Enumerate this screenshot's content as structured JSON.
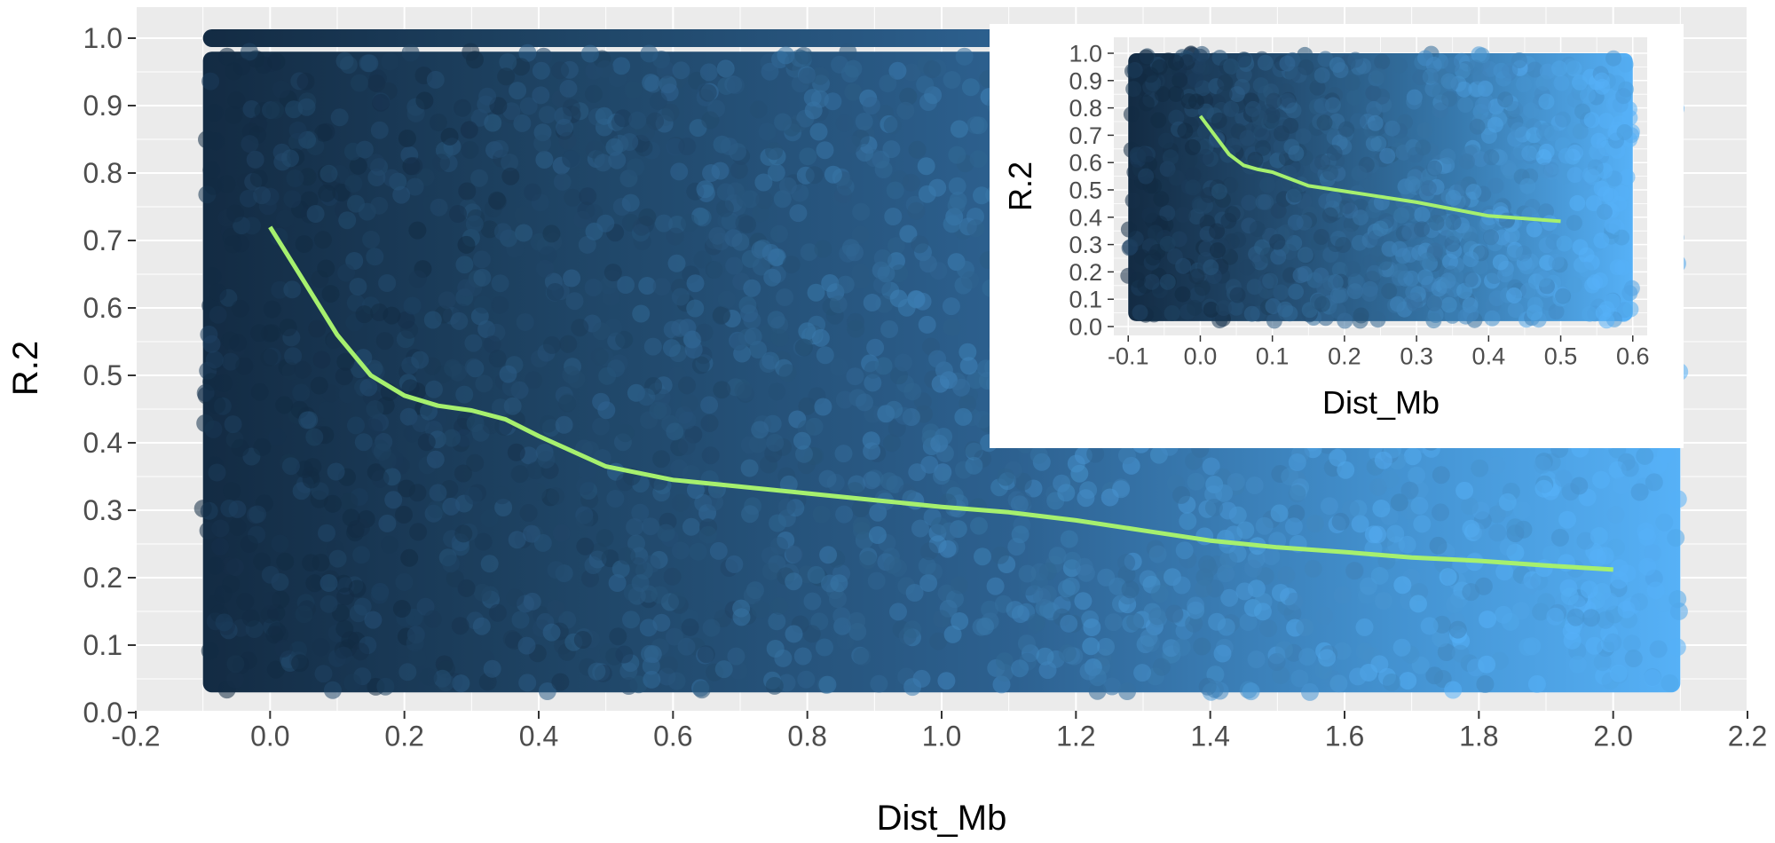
{
  "chart_data": [
    {
      "type": "scatter",
      "title": "",
      "xlabel": "Dist_Mb",
      "ylabel": "R.2",
      "xlim": [
        -0.2,
        2.2
      ],
      "ylim": [
        0.0,
        1.0
      ],
      "xticks": [
        -0.2,
        0.0,
        0.2,
        0.4,
        0.6,
        0.8,
        1.0,
        1.2,
        1.4,
        1.6,
        1.8,
        2.0,
        2.2
      ],
      "xtick_labels": [
        "-0.2",
        "0.0",
        "0.2",
        "0.4",
        "0.6",
        "0.8",
        "1.0",
        "1.2",
        "1.4",
        "1.6",
        "1.8",
        "2.0",
        "2.2"
      ],
      "yticks": [
        0.0,
        0.1,
        0.2,
        0.3,
        0.4,
        0.5,
        0.6,
        0.7,
        0.8,
        0.9,
        1.0
      ],
      "ytick_labels": [
        "0.0",
        "0.1",
        "0.2",
        "0.3",
        "0.4",
        "0.5",
        "0.6",
        "0.7",
        "0.8",
        "0.9",
        "1.0"
      ],
      "grid": true,
      "point_cloud": {
        "x_range": [
          -0.1,
          2.1
        ],
        "y_range": [
          0.03,
          0.98
        ],
        "top_band_y": 1.0,
        "color_low": "#132b43",
        "color_high": "#56b1f7"
      },
      "series": [
        {
          "type": "line",
          "color": "#a6f06e",
          "x": [
            0.0,
            0.05,
            0.1,
            0.15,
            0.2,
            0.25,
            0.3,
            0.35,
            0.4,
            0.5,
            0.6,
            0.7,
            0.8,
            0.9,
            1.0,
            1.1,
            1.2,
            1.3,
            1.4,
            1.5,
            1.6,
            1.7,
            1.8,
            1.9,
            2.0
          ],
          "y": [
            0.72,
            0.64,
            0.56,
            0.5,
            0.47,
            0.455,
            0.448,
            0.435,
            0.41,
            0.365,
            0.345,
            0.335,
            0.325,
            0.315,
            0.305,
            0.297,
            0.285,
            0.27,
            0.255,
            0.245,
            0.238,
            0.23,
            0.225,
            0.218,
            0.212
          ]
        }
      ]
    },
    {
      "type": "scatter",
      "title": "",
      "xlabel": "Dist_Mb",
      "ylabel": "R.2",
      "xlim": [
        -0.12,
        0.62
      ],
      "ylim": [
        0.0,
        1.0
      ],
      "xticks": [
        -0.1,
        0.0,
        0.1,
        0.2,
        0.3,
        0.4,
        0.5,
        0.6
      ],
      "xtick_labels": [
        "-0.1",
        "0.0",
        "0.1",
        "0.2",
        "0.3",
        "0.4",
        "0.5",
        "0.6"
      ],
      "yticks": [
        0.0,
        0.1,
        0.2,
        0.3,
        0.4,
        0.5,
        0.6,
        0.7,
        0.8,
        0.9,
        1.0
      ],
      "ytick_labels": [
        "0.0",
        "0.1",
        "0.2",
        "0.3",
        "0.4",
        "0.5",
        "0.6",
        "0.7",
        "0.8",
        "0.9",
        "1.0"
      ],
      "grid": true,
      "point_cloud": {
        "x_range": [
          -0.1,
          0.6
        ],
        "y_range": [
          0.02,
          1.0
        ],
        "color_low": "#132b43",
        "color_high": "#56b1f7"
      },
      "series": [
        {
          "type": "line",
          "color": "#a6f06e",
          "x": [
            0.0,
            0.02,
            0.04,
            0.06,
            0.08,
            0.1,
            0.12,
            0.15,
            0.2,
            0.25,
            0.3,
            0.35,
            0.4,
            0.45,
            0.5
          ],
          "y": [
            0.77,
            0.7,
            0.63,
            0.59,
            0.575,
            0.565,
            0.545,
            0.515,
            0.495,
            0.475,
            0.455,
            0.43,
            0.405,
            0.395,
            0.385
          ]
        }
      ]
    }
  ]
}
